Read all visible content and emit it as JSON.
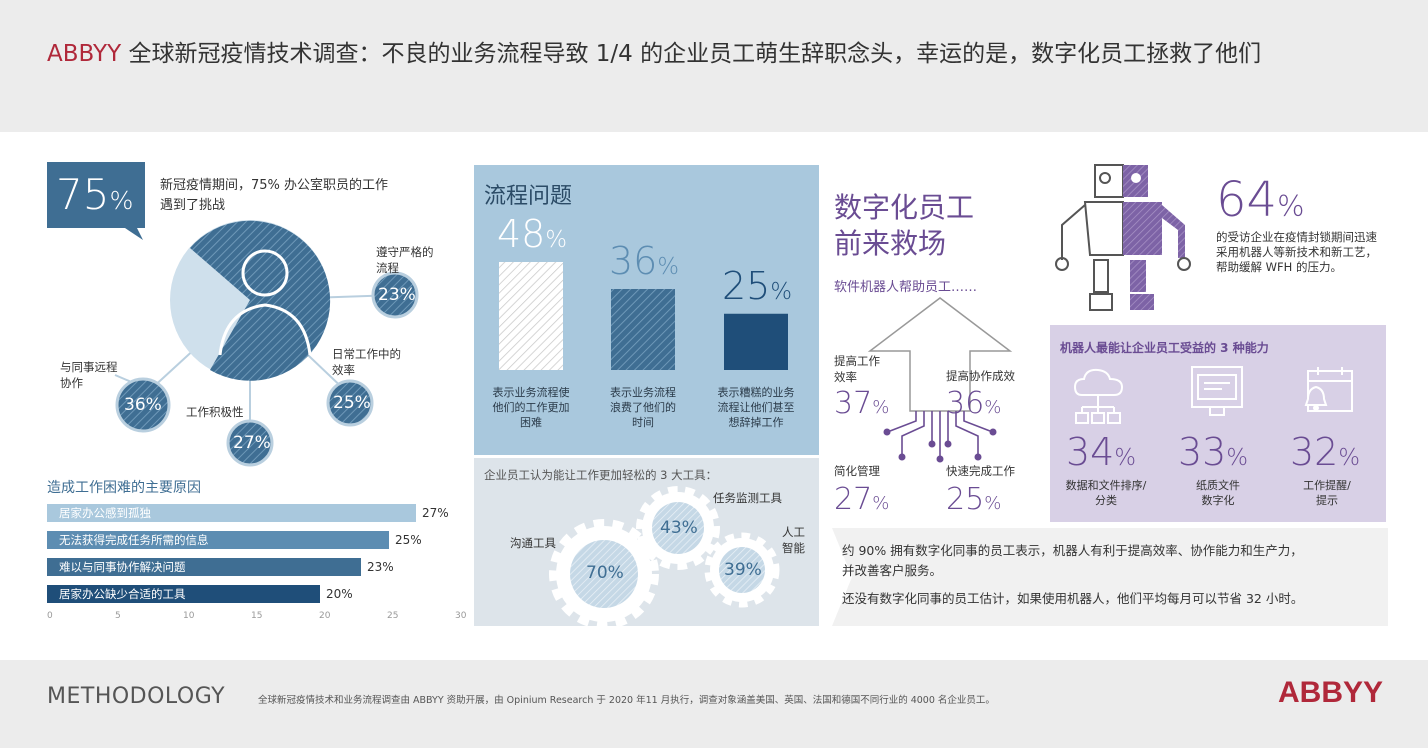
{
  "title": {
    "brand": "ABBYY",
    "rest": " 全球新冠疫情技术调查：不良的业务流程导致 1/4 的企业员工萌生辞职念头，幸运的是，数字化员工拯救了他们"
  },
  "challenge": {
    "pct": "75",
    "pct_sign": "%",
    "text_line1": "新冠疫情期间，75% 办公室职员的工作",
    "text_line2": "遇到了挑战",
    "factors": [
      {
        "label_line1": "遵守严格的",
        "label_line2": "流程",
        "value": "23%"
      },
      {
        "label_line1": "日常工作中的",
        "label_line2": "效率",
        "value": "25%"
      },
      {
        "label_line1": "工作积极性",
        "label_line2": "",
        "value": "27%"
      },
      {
        "label_line1": "与同事远程",
        "label_line2": "协作",
        "value": "36%"
      }
    ]
  },
  "reasons": {
    "title": "造成工作困难的主要原因",
    "items": [
      {
        "label": "居家办公感到孤独",
        "value": 27,
        "display": "27%"
      },
      {
        "label": "无法获得完成任务所需的信息",
        "value": 25,
        "display": "25%"
      },
      {
        "label": "难以与同事协作解决问题",
        "value": 23,
        "display": "23%"
      },
      {
        "label": "居家办公缺少合适的工具",
        "value": 20,
        "display": "20%"
      }
    ],
    "axis": [
      "0",
      "5",
      "10",
      "15",
      "20",
      "25",
      "30"
    ]
  },
  "process": {
    "title": "流程问题",
    "bars": [
      {
        "num": "48",
        "sign": "%",
        "value": 48,
        "desc_line1": "表示业务流程使",
        "desc_line2": "他们的工作更加",
        "desc_line3": "困难"
      },
      {
        "num": "36",
        "sign": "%",
        "value": 36,
        "desc_line1": "表示业务流程",
        "desc_line2": "浪费了他们的",
        "desc_line3": "时间"
      },
      {
        "num": "25",
        "sign": "%",
        "value": 25,
        "desc_line1": "表示糟糕的业务",
        "desc_line2": "流程让他们甚至",
        "desc_line3": "想辞掉工作"
      }
    ]
  },
  "tools": {
    "title": "企业员工认为能让工作更加轻松的 3 大工具：",
    "items": [
      {
        "label": "沟通工具",
        "value": "70%"
      },
      {
        "label": "任务监测工具",
        "value": "43%"
      },
      {
        "label_line1": "人工",
        "label_line2": "智能",
        "value": "39%"
      }
    ]
  },
  "digital": {
    "title_line1": "数字化员工",
    "title_line2": "前来救场",
    "subtitle": "软件机器人帮助员工……",
    "stats": [
      {
        "label_line1": "提高工作",
        "label_line2": "效率",
        "value": "37",
        "sign": "%"
      },
      {
        "label_line1": "提高协作成效",
        "label_line2": "",
        "value": "36",
        "sign": "%"
      },
      {
        "label_line1": "简化管理",
        "label_line2": "",
        "value": "27",
        "sign": "%"
      },
      {
        "label_line1": "快速完成工作",
        "label_line2": "",
        "value": "25",
        "sign": "%"
      }
    ]
  },
  "robots": {
    "pct": "64",
    "sign": "%",
    "text_line1": "的受访企业在疫情封锁期间迅速",
    "text_line2": "采用机器人等新技术和新工艺，",
    "text_line3": "帮助缓解 WFH 的压力。"
  },
  "abilities": {
    "title": "机器人最能让企业员工受益的 3 种能力",
    "items": [
      {
        "icon": "cloud-network-icon",
        "value": "34",
        "sign": "%",
        "label_line1": "数据和文件排序/",
        "label_line2": "分类"
      },
      {
        "icon": "document-screen-icon",
        "value": "33",
        "sign": "%",
        "label_line1": "纸质文件",
        "label_line2": "数字化"
      },
      {
        "icon": "calendar-bell-icon",
        "value": "32",
        "sign": "%",
        "label_line1": "工作提醒/",
        "label_line2": "提示"
      }
    ]
  },
  "summary": {
    "line1": "约 90% 拥有数字化同事的员工表示，机器人有利于提高效率、协作能力和生产力，",
    "line2": "并改善客户服务。",
    "line3": "还没有数字化同事的员工估计，如果使用机器人，他们平均每月可以节省 32 小时。"
  },
  "footer": {
    "methodology": "METHODOLOGY",
    "text": "全球新冠疫情技术和业务流程调查由 ABBYY 资助开展，由 Opinium Research 于 2020 年11 月执行，调查对象涵盖美国、英国、法国和德国不同行业的 4000 名企业员工。",
    "logo": "ABBYY"
  },
  "colors": {
    "brand_red": "#b0283a",
    "navy": "#1f4e79",
    "steel_blue": "#3f6e93",
    "light_blue": "#a9c8dd",
    "purple": "#6a4c93",
    "lavender": "#d8d0e6"
  }
}
